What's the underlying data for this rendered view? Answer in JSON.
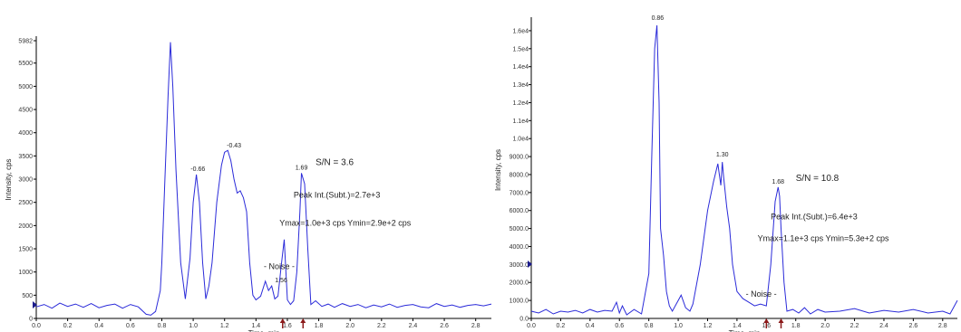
{
  "chart_data": [
    {
      "type": "line",
      "xlabel": "Time, min",
      "ylabel": "Intensity, cps",
      "xlim": [
        0.0,
        2.9
      ],
      "ylim": [
        0,
        5982
      ],
      "x_ticks": [
        "0.0",
        "0.2",
        "0.4",
        "0.6",
        "0.8",
        "1.0",
        "1.2",
        "1.4",
        "1.6",
        "1.8",
        "2.0",
        "2.2",
        "2.4",
        "2.6",
        "2.8"
      ],
      "y_ticks": [
        {
          "value": 5982,
          "label": "5982"
        },
        {
          "value": 5500,
          "label": "5500"
        },
        {
          "value": 5000,
          "label": "5000"
        },
        {
          "value": 4500,
          "label": "4500"
        },
        {
          "value": 4000,
          "label": "4000"
        },
        {
          "value": 3500,
          "label": "3500"
        },
        {
          "value": 3000,
          "label": "3000"
        },
        {
          "value": 2500,
          "label": "2500"
        },
        {
          "value": 2000,
          "label": "2000"
        },
        {
          "value": 1500,
          "label": "1500"
        },
        {
          "value": 1000,
          "label": "1000"
        },
        {
          "value": 500,
          "label": "500"
        },
        {
          "value": 0,
          "label": "0"
        }
      ],
      "peak_labels": [
        {
          "x": 1.03,
          "y": 3100,
          "label": "-0.66"
        },
        {
          "x": 1.26,
          "y": 3600,
          "label": "-0.43"
        },
        {
          "x": 1.69,
          "y": 3130,
          "label": "1.69"
        },
        {
          "x": 1.56,
          "y": 700,
          "label": "1.56"
        }
      ],
      "annotations": {
        "sn": "S/N = 3.6",
        "peak_int": "Peak Int.(Subt.)=2.7e+3",
        "ymax_ymin": "Ymax=1.0e+3 cps  Ymin=2.9e+2 cps",
        "noise": "- Noise -"
      },
      "annotation_positions": {
        "sn": [
          1.78,
          3300
        ],
        "peak_int": [
          1.64,
          2600
        ],
        "ymax_ymin": [
          1.55,
          2000
        ],
        "noise": [
          1.45,
          1060
        ]
      },
      "arrows_x": [
        1.57,
        1.7
      ],
      "series": [
        {
          "x": [
            0.0,
            0.05,
            0.1,
            0.15,
            0.2,
            0.25,
            0.3,
            0.35,
            0.4,
            0.45,
            0.5,
            0.55,
            0.6,
            0.65,
            0.7,
            0.73,
            0.76,
            0.79,
            0.8,
            0.82,
            0.84,
            0.855,
            0.87,
            0.89,
            0.92,
            0.95,
            0.98,
            1.0,
            1.02,
            1.04,
            1.06,
            1.08,
            1.1,
            1.12,
            1.15,
            1.18,
            1.2,
            1.22,
            1.24,
            1.26,
            1.28,
            1.3,
            1.32,
            1.34,
            1.36,
            1.38,
            1.4,
            1.43,
            1.46,
            1.48,
            1.5,
            1.52,
            1.54,
            1.56,
            1.58,
            1.6,
            1.62,
            1.64,
            1.66,
            1.68,
            1.69,
            1.71,
            1.73,
            1.75,
            1.78,
            1.82,
            1.86,
            1.9,
            1.95,
            2.0,
            2.05,
            2.1,
            2.15,
            2.2,
            2.25,
            2.3,
            2.35,
            2.4,
            2.45,
            2.5,
            2.55,
            2.6,
            2.65,
            2.7,
            2.75,
            2.8,
            2.85,
            2.9
          ],
          "y": [
            250,
            300,
            220,
            330,
            260,
            310,
            240,
            320,
            230,
            280,
            310,
            220,
            300,
            250,
            90,
            70,
            150,
            600,
            1200,
            3000,
            4800,
            5950,
            5000,
            3200,
            1200,
            420,
            1300,
            2500,
            3100,
            2500,
            1200,
            420,
            700,
            1200,
            2500,
            3300,
            3580,
            3620,
            3400,
            3000,
            2700,
            2750,
            2600,
            2300,
            1200,
            500,
            400,
            480,
            800,
            600,
            700,
            420,
            480,
            1100,
            1700,
            400,
            300,
            380,
            1000,
            2300,
            3130,
            2900,
            1500,
            300,
            380,
            260,
            310,
            240,
            320,
            260,
            300,
            230,
            290,
            250,
            310,
            240,
            280,
            300,
            250,
            230,
            320,
            260,
            290,
            240,
            280,
            300,
            270,
            310
          ]
        }
      ]
    },
    {
      "type": "line",
      "xlabel": "Time, min",
      "ylabel": "Intensity, cps",
      "xlim": [
        0.0,
        2.9
      ],
      "ylim": [
        0,
        16500
      ],
      "x_ticks": [
        "0.0",
        "0.2",
        "0.4",
        "0.6",
        "0.8",
        "1.0",
        "1.2",
        "1.4",
        "1.6",
        "1.8",
        "2.0",
        "2.2",
        "2.4",
        "2.6",
        "2.8"
      ],
      "y_ticks": [
        {
          "value": 16000,
          "label": "1.6e4"
        },
        {
          "value": 15000,
          "label": "1.5e4"
        },
        {
          "value": 14000,
          "label": "1.4e4"
        },
        {
          "value": 13000,
          "label": "1.3e4"
        },
        {
          "value": 12000,
          "label": "1.2e4"
        },
        {
          "value": 11000,
          "label": "1.1e4"
        },
        {
          "value": 10000,
          "label": "1.0e4"
        },
        {
          "value": 9000,
          "label": "9000.0"
        },
        {
          "value": 8000,
          "label": "8000.0"
        },
        {
          "value": 7000,
          "label": "7000.0"
        },
        {
          "value": 6000,
          "label": "6000.0"
        },
        {
          "value": 5000,
          "label": "5000.0"
        },
        {
          "value": 4000,
          "label": "4000.0"
        },
        {
          "value": 3000,
          "label": "3000.0"
        },
        {
          "value": 2000,
          "label": "2000.0"
        },
        {
          "value": 1000,
          "label": "1000.0"
        },
        {
          "value": 0,
          "label": "0.0"
        }
      ],
      "peak_labels": [
        {
          "x": 0.86,
          "y": 16400,
          "label": "0.86"
        },
        {
          "x": 1.3,
          "y": 8800,
          "label": "1.30"
        },
        {
          "x": 1.68,
          "y": 7300,
          "label": "1.68"
        }
      ],
      "annotations": {
        "sn": "S/N = 10.8",
        "peak_int": "Peak Int.(Subt.)=6.4e+3",
        "ymax_ymin": "Ymax=1.1e+3 cps  Ymin=5.3e+2 cps",
        "noise": "- Noise -"
      },
      "annotation_positions": {
        "sn": [
          1.8,
          7650
        ],
        "peak_int": [
          1.63,
          5500
        ],
        "ymax_ymin": [
          1.54,
          4300
        ],
        "noise": [
          1.46,
          1200
        ]
      },
      "arrows_x": [
        1.6,
        1.7
      ],
      "series": [
        {
          "x": [
            0.0,
            0.05,
            0.1,
            0.15,
            0.2,
            0.25,
            0.3,
            0.35,
            0.4,
            0.45,
            0.5,
            0.55,
            0.58,
            0.6,
            0.62,
            0.65,
            0.7,
            0.75,
            0.8,
            0.82,
            0.84,
            0.855,
            0.87,
            0.88,
            0.9,
            0.92,
            0.94,
            0.96,
            1.0,
            1.02,
            1.05,
            1.08,
            1.1,
            1.15,
            1.2,
            1.24,
            1.27,
            1.29,
            1.3,
            1.31,
            1.33,
            1.35,
            1.37,
            1.4,
            1.44,
            1.48,
            1.52,
            1.56,
            1.6,
            1.63,
            1.66,
            1.68,
            1.69,
            1.7,
            1.72,
            1.74,
            1.78,
            1.82,
            1.86,
            1.9,
            1.95,
            2.0,
            2.1,
            2.2,
            2.3,
            2.4,
            2.5,
            2.6,
            2.7,
            2.8,
            2.85,
            2.9
          ],
          "y": [
            400,
            300,
            500,
            250,
            400,
            350,
            450,
            300,
            500,
            350,
            450,
            400,
            900,
            300,
            700,
            200,
            500,
            250,
            2500,
            9000,
            15000,
            16300,
            12000,
            5000,
            3500,
            1500,
            700,
            400,
            1000,
            1300,
            600,
            400,
            800,
            3000,
            6000,
            7600,
            8600,
            7400,
            8700,
            7800,
            6200,
            5000,
            3000,
            1500,
            1100,
            900,
            700,
            800,
            700,
            3000,
            6500,
            7300,
            6800,
            5000,
            2000,
            400,
            500,
            300,
            600,
            250,
            500,
            350,
            400,
            550,
            300,
            450,
            350,
            500,
            300,
            400,
            250,
            1000
          ]
        }
      ]
    }
  ]
}
